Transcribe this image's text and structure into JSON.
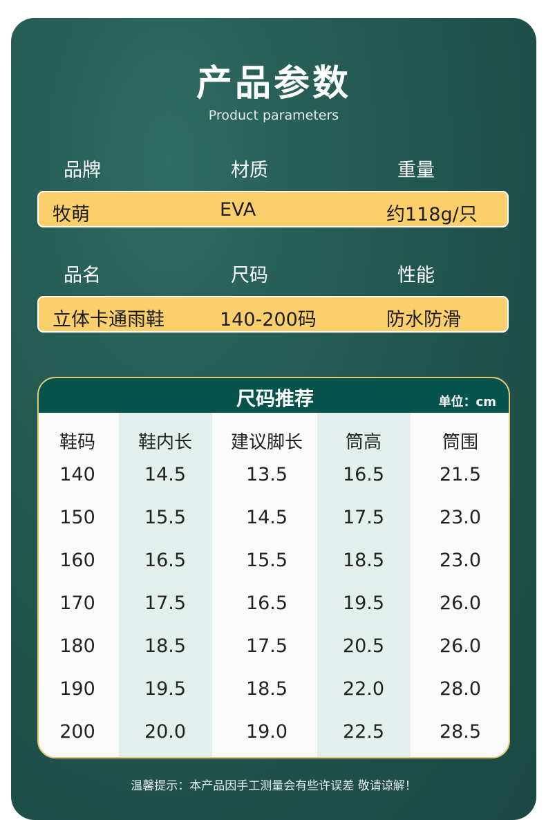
{
  "header": {
    "title": "产品参数",
    "subtitle": "Product parameters"
  },
  "params": [
    {
      "labels": [
        "品牌",
        "材质",
        "重量"
      ],
      "values": [
        "牧萌",
        "EVA",
        "约118g/只"
      ]
    },
    {
      "labels": [
        "品名",
        "尺码",
        "性能"
      ],
      "values": [
        "立体卡通雨鞋",
        "140-200码",
        "防水防滑"
      ]
    }
  ],
  "size_table": {
    "title": "尺码推荐",
    "unit": "单位：cm",
    "headers": [
      "鞋码",
      "鞋内长",
      "建议脚长",
      "筒高",
      "筒围"
    ],
    "rows": [
      [
        "140",
        "14.5",
        "13.5",
        "16.5",
        "21.5"
      ],
      [
        "150",
        "15.5",
        "14.5",
        "17.5",
        "23.0"
      ],
      [
        "160",
        "16.5",
        "15.5",
        "18.5",
        "23.0"
      ],
      [
        "170",
        "17.5",
        "16.5",
        "19.5",
        "26.0"
      ],
      [
        "180",
        "18.5",
        "17.5",
        "20.5",
        "26.0"
      ],
      [
        "190",
        "19.5",
        "18.5",
        "22.0",
        "28.0"
      ],
      [
        "200",
        "20.0",
        "19.0",
        "22.5",
        "28.5"
      ]
    ]
  },
  "footer": {
    "note": "温馨提示：本产品因手工测量会有些许误差 敬请谅解！"
  },
  "colors": {
    "background": "#245a52",
    "value_bar": "#fbcf6b",
    "table_header": "#06524c",
    "column_shade": "#e2efed",
    "card_border": "#e2c86e"
  }
}
